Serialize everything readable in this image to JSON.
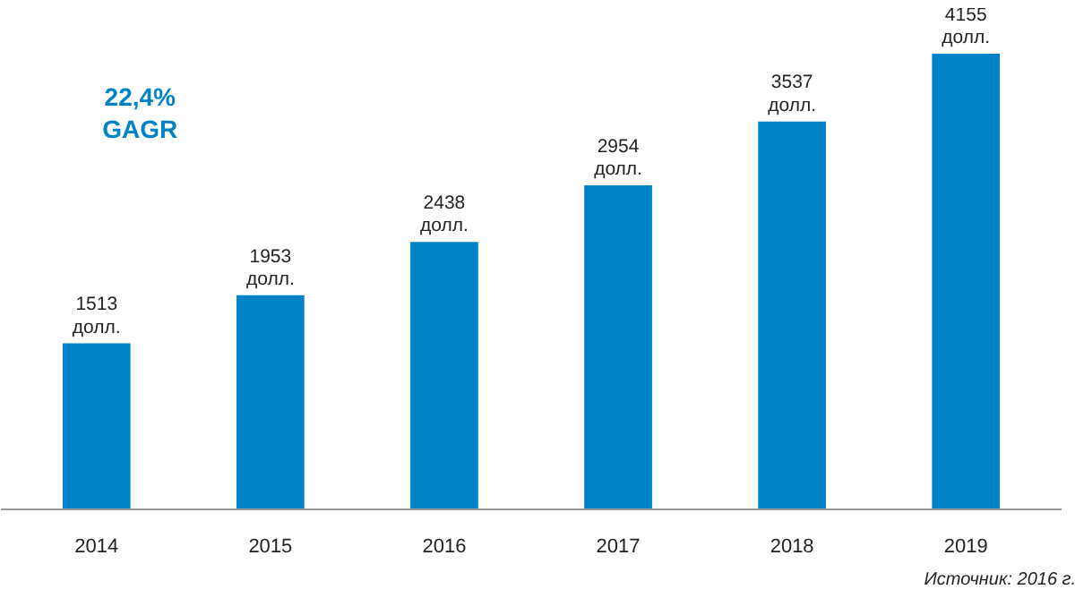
{
  "chart_data": {
    "type": "bar",
    "categories": [
      "2014",
      "2015",
      "2016",
      "2017",
      "2018",
      "2019"
    ],
    "values": [
      1513,
      1953,
      2438,
      2954,
      3537,
      4155
    ],
    "value_labels": [
      "1513\nдолл.",
      "1953\nдолл.",
      "2438\nдолл.",
      "2954\nдолл.",
      "3537\nдолл.",
      "4155\nдолл."
    ],
    "color": "#0082c6",
    "grid": false,
    "annotations": [
      "22,4%\nGAGR",
      "Источник: 2016 г."
    ]
  }
}
